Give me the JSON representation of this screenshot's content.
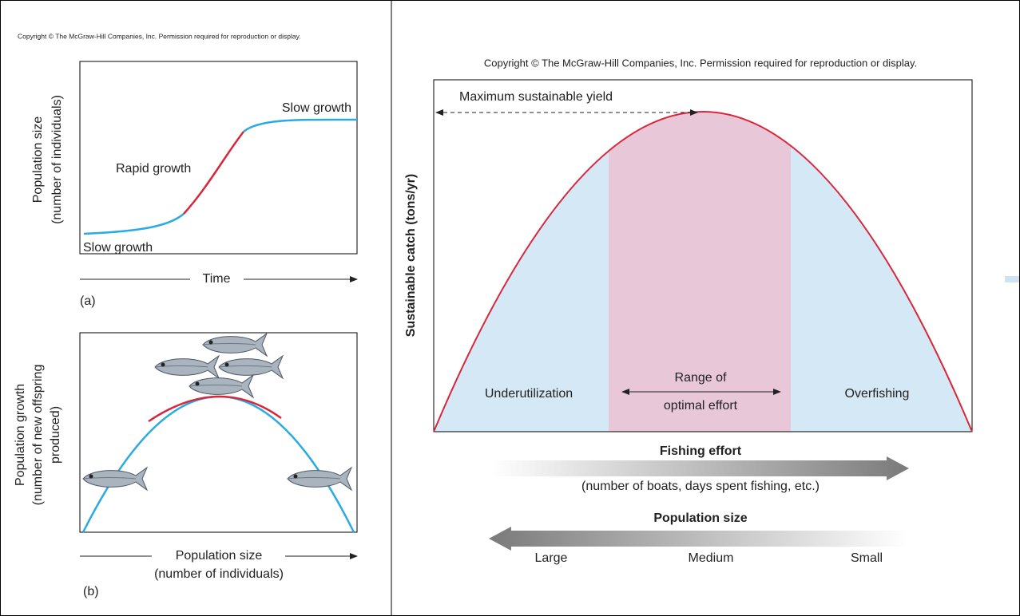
{
  "left_panel": {
    "copyright": "Copyright © The McGraw-Hill Companies, Inc. Permission required for reproduction or display.",
    "panel_a": {
      "y_axis_label": [
        "Population size",
        "(number of individuals)"
      ],
      "curve_labels": [
        "Slow growth",
        "Rapid growth",
        "Slow growth"
      ],
      "x_axis_label": "Time",
      "tag": "(a)"
    },
    "panel_b": {
      "y_axis_label": [
        "Population growth",
        "(number of new offspring",
        "produced)"
      ],
      "x_axis_label": [
        "Population size",
        "(number of individuals)"
      ],
      "tag": "(b)"
    }
  },
  "right_panel": {
    "copyright": "Copyright © The McGraw-Hill Companies, Inc. Permission required for reproduction or display.",
    "y_axis_label": "Sustainable catch (tons/yr)",
    "peak_label": "Maximum sustainable yield",
    "regions": [
      "Underutilization",
      "Range of",
      "optimal effort",
      "Overfishing"
    ],
    "effort_arrow": {
      "title": "Fishing effort",
      "caption": "(number of boats, days spent fishing, etc.)"
    },
    "population_arrow": {
      "title": "Population size",
      "labels": [
        "Large",
        "Medium",
        "Small"
      ]
    }
  }
}
